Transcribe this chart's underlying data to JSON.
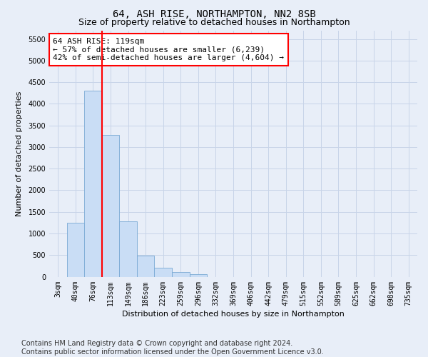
{
  "title": "64, ASH RISE, NORTHAMPTON, NN2 8SB",
  "subtitle": "Size of property relative to detached houses in Northampton",
  "xlabel": "Distribution of detached houses by size in Northampton",
  "ylabel": "Number of detached properties",
  "footer_line1": "Contains HM Land Registry data © Crown copyright and database right 2024.",
  "footer_line2": "Contains public sector information licensed under the Open Government Licence v3.0.",
  "bar_labels": [
    "3sqm",
    "40sqm",
    "76sqm",
    "113sqm",
    "149sqm",
    "186sqm",
    "223sqm",
    "259sqm",
    "296sqm",
    "332sqm",
    "369sqm",
    "406sqm",
    "442sqm",
    "479sqm",
    "515sqm",
    "552sqm",
    "589sqm",
    "625sqm",
    "662sqm",
    "698sqm",
    "735sqm"
  ],
  "bar_values": [
    0,
    1250,
    4300,
    3280,
    1280,
    480,
    200,
    100,
    60,
    0,
    0,
    0,
    0,
    0,
    0,
    0,
    0,
    0,
    0,
    0,
    0
  ],
  "bar_color": "#c9ddf5",
  "bar_edge_color": "#7aaad4",
  "vline_color": "red",
  "vline_pos": 2.5,
  "annotation_line1": "64 ASH RISE: 119sqm",
  "annotation_line2": "← 57% of detached houses are smaller (6,239)",
  "annotation_line3": "42% of semi-detached houses are larger (4,604) →",
  "ylim": [
    0,
    5700
  ],
  "yticks": [
    0,
    500,
    1000,
    1500,
    2000,
    2500,
    3000,
    3500,
    4000,
    4500,
    5000,
    5500
  ],
  "grid_color": "#c8d4e8",
  "bg_color": "#e8eef8",
  "plot_bg": "#e8eef8",
  "title_fontsize": 10,
  "subtitle_fontsize": 9,
  "tick_fontsize": 7,
  "ylabel_fontsize": 8,
  "xlabel_fontsize": 8,
  "annotation_fontsize": 8,
  "footer_fontsize": 7
}
